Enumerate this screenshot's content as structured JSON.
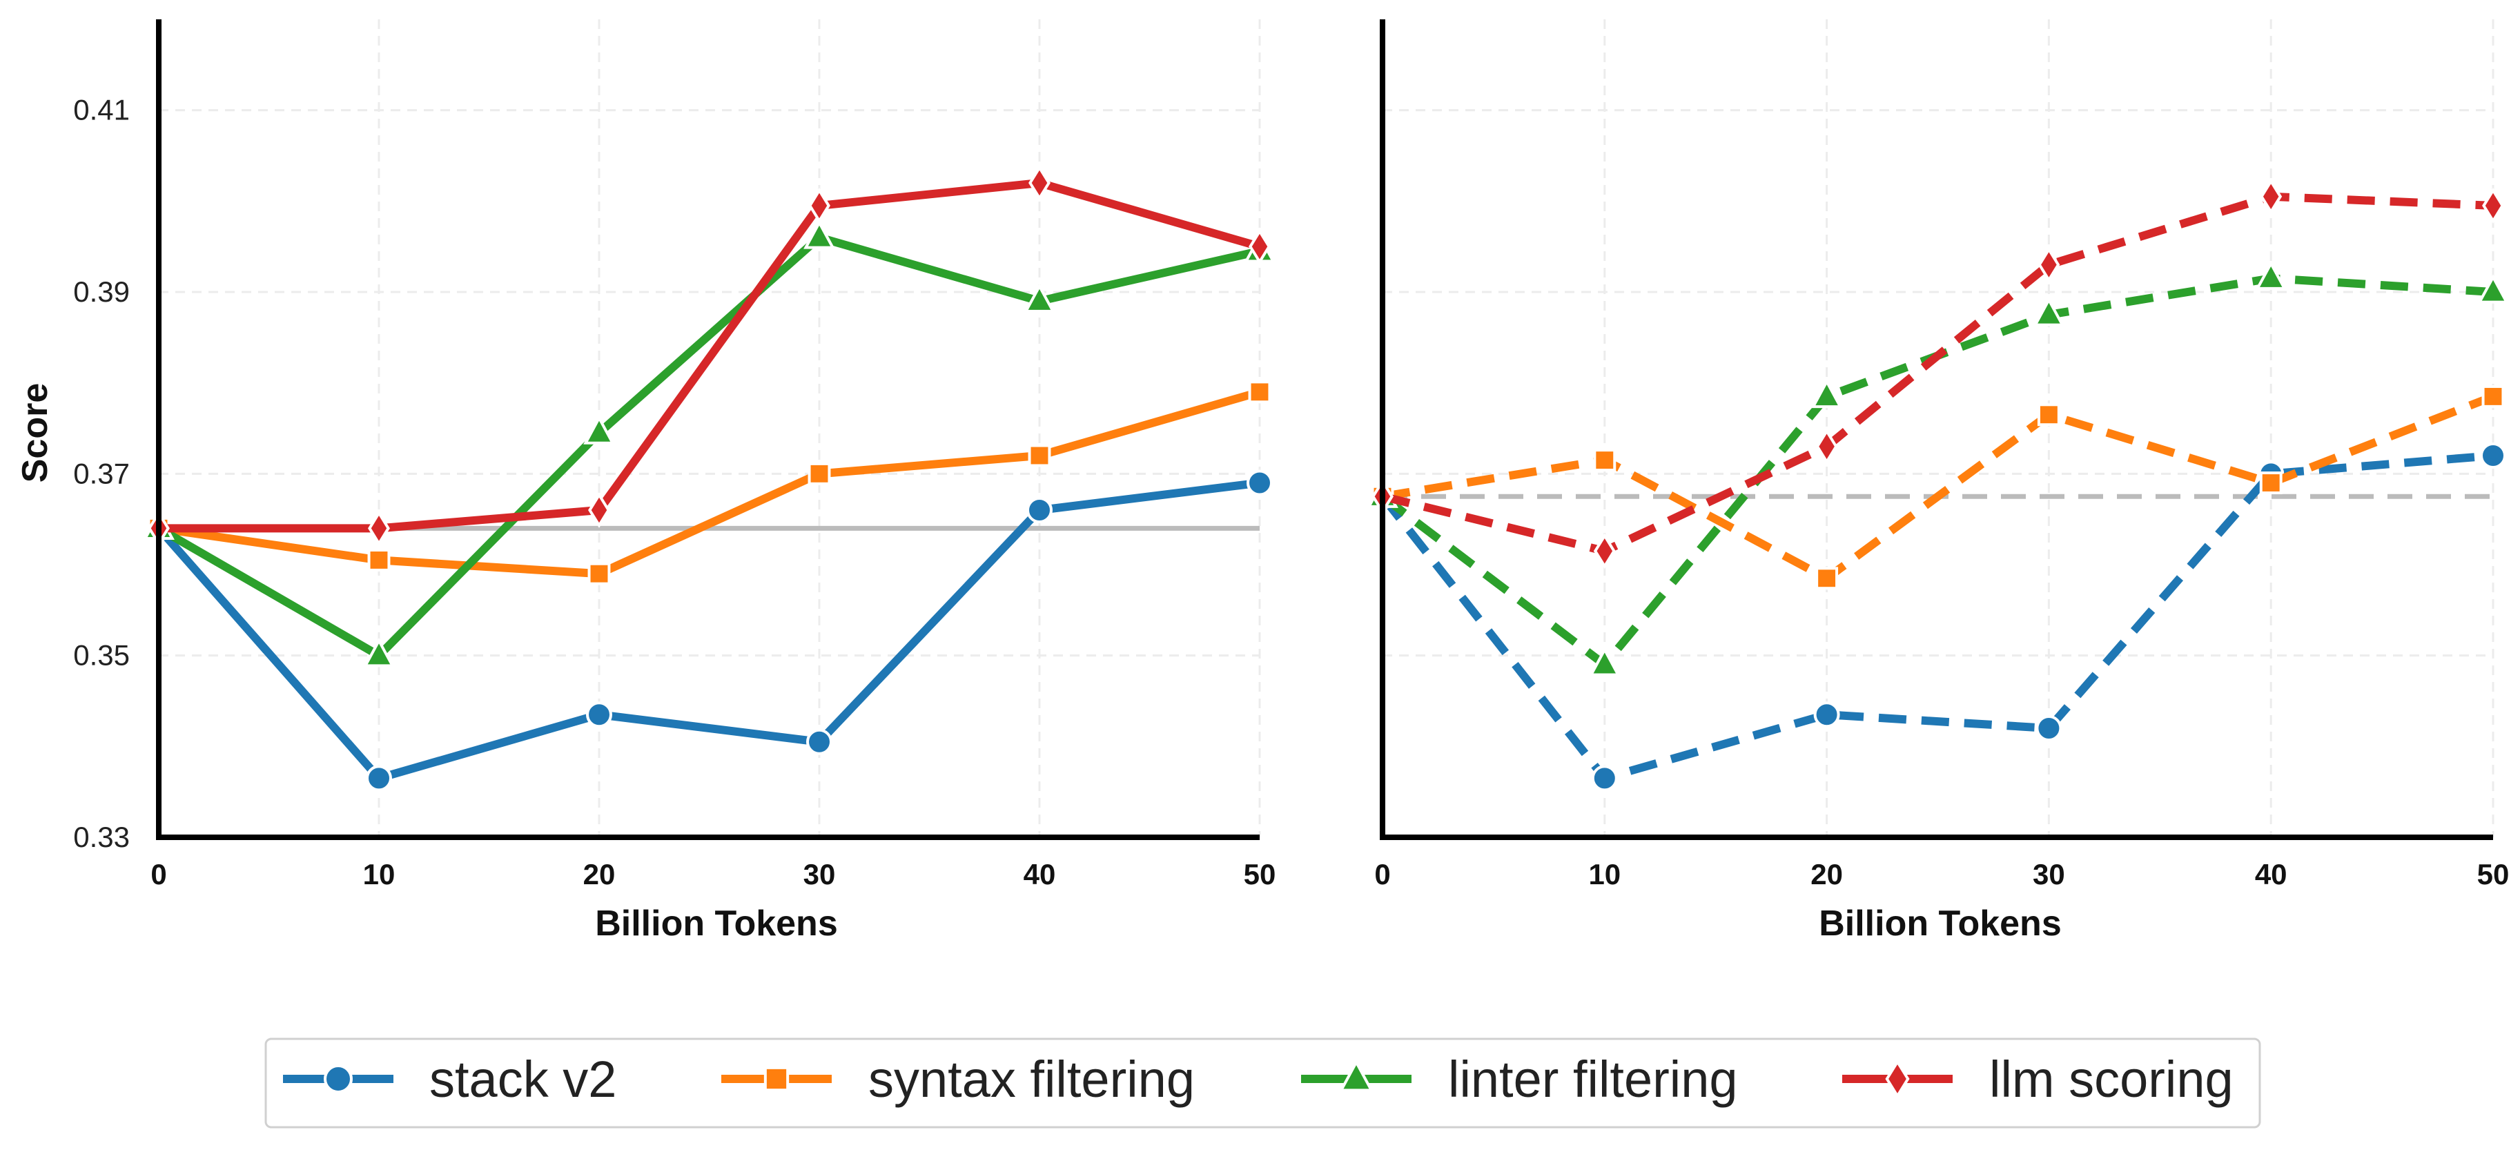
{
  "chart_data": [
    {
      "type": "line",
      "panel": "left",
      "line_style": "solid",
      "xlabel": "Billion Tokens",
      "ylabel": "Score",
      "x": [
        0,
        10,
        20,
        30,
        40,
        50
      ],
      "xticks": [
        "0",
        "10",
        "20",
        "30",
        "40",
        "50"
      ],
      "xlim": [
        0,
        50
      ],
      "ylim": [
        0.33,
        0.42
      ],
      "yticks": [
        "0.33",
        "0.35",
        "0.37",
        "0.39",
        "0.41"
      ],
      "ytick_values": [
        0.33,
        0.35,
        0.37,
        0.39,
        0.41
      ],
      "grid": true,
      "baseline": {
        "value": 0.364,
        "color": "#bbbbbb",
        "style": "solid"
      },
      "series": [
        {
          "name": "stack v2",
          "color": "#1f77b4",
          "marker": "circle",
          "values": [
            0.364,
            0.3365,
            0.3435,
            0.3405,
            0.366,
            0.369
          ]
        },
        {
          "name": "syntax filtering",
          "color": "#ff7f0e",
          "marker": "square",
          "values": [
            0.364,
            0.3605,
            0.359,
            0.37,
            0.372,
            0.379
          ]
        },
        {
          "name": "linter filtering",
          "color": "#2ca02c",
          "marker": "triangle",
          "values": [
            0.364,
            0.35,
            0.3745,
            0.396,
            0.389,
            0.3945
          ]
        },
        {
          "name": "llm scoring",
          "color": "#d62728",
          "marker": "diamond",
          "values": [
            0.364,
            0.364,
            0.366,
            0.3995,
            0.402,
            0.395
          ]
        }
      ]
    },
    {
      "type": "line",
      "panel": "right",
      "line_style": "dashed",
      "xlabel": "Billion Tokens",
      "ylabel": "",
      "x": [
        0,
        10,
        20,
        30,
        40,
        50
      ],
      "xticks": [
        "0",
        "10",
        "20",
        "30",
        "40",
        "50"
      ],
      "xlim": [
        0,
        50
      ],
      "ylim": [
        0.33,
        0.42
      ],
      "grid": true,
      "baseline": {
        "value": 0.3675,
        "color": "#bbbbbb",
        "style": "dashed"
      },
      "series": [
        {
          "name": "stack v2",
          "color": "#1f77b4",
          "marker": "circle",
          "values": [
            0.3675,
            0.3365,
            0.3435,
            0.342,
            0.37,
            0.372
          ]
        },
        {
          "name": "syntax filtering",
          "color": "#ff7f0e",
          "marker": "square",
          "values": [
            0.3675,
            0.3715,
            0.3585,
            0.3765,
            0.369,
            0.3785
          ]
        },
        {
          "name": "linter filtering",
          "color": "#2ca02c",
          "marker": "triangle",
          "values": [
            0.3675,
            0.349,
            0.3785,
            0.3875,
            0.3915,
            0.39
          ]
        },
        {
          "name": "llm scoring",
          "color": "#d62728",
          "marker": "diamond",
          "values": [
            0.3675,
            0.3615,
            0.373,
            0.393,
            0.4005,
            0.3995
          ]
        }
      ]
    }
  ],
  "legend": {
    "placement": "bottom-center",
    "items": [
      {
        "label": "stack v2",
        "color": "#1f77b4",
        "marker": "circle"
      },
      {
        "label": "syntax filtering",
        "color": "#ff7f0e",
        "marker": "square"
      },
      {
        "label": "linter filtering",
        "color": "#2ca02c",
        "marker": "triangle"
      },
      {
        "label": "llm scoring",
        "color": "#d62728",
        "marker": "diamond"
      }
    ]
  }
}
